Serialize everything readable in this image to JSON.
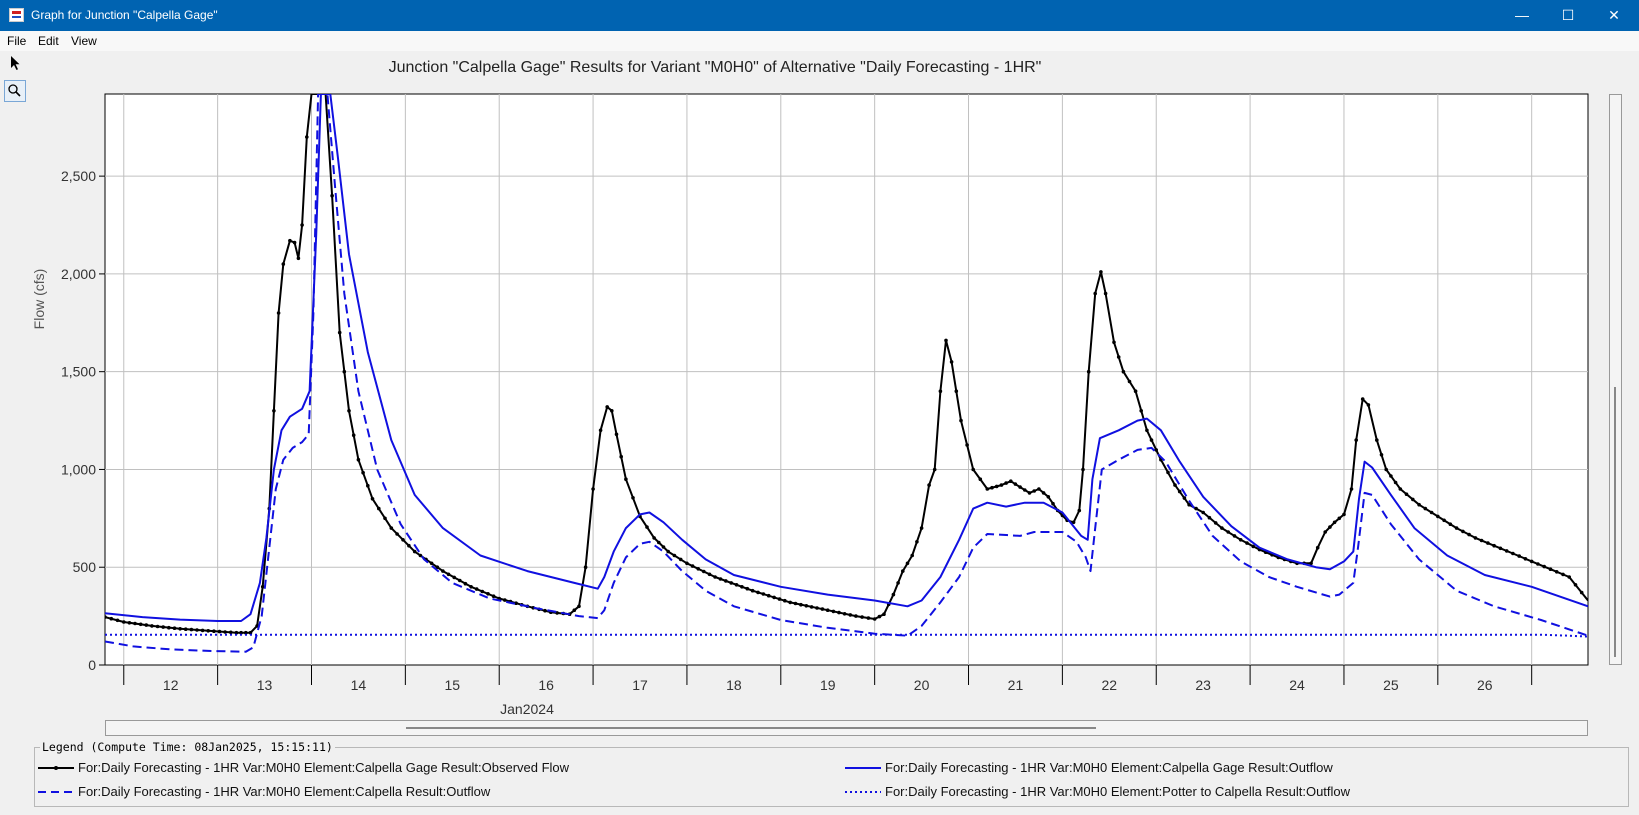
{
  "window": {
    "title": "Graph for Junction \"Calpella Gage\"",
    "minimize": "—",
    "maximize": "☐",
    "close": "✕"
  },
  "menu": {
    "file": "File",
    "edit": "Edit",
    "view": "View"
  },
  "toolbar": {
    "select_icon": "arrow-pointer-icon",
    "zoom_icon": "magnifier-icon"
  },
  "legend": {
    "title": "Legend (Compute Time: 08Jan2025, 15:15:11)",
    "entries": [
      {
        "label": "For:Daily Forecasting - 1HR Var:M0H0 Element:Calpella Gage Result:Observed Flow",
        "color": "#000000",
        "style": "solid-markers"
      },
      {
        "label": "For:Daily Forecasting - 1HR Var:M0H0 Element:Calpella Gage Result:Outflow",
        "color": "#1010e0",
        "style": "solid"
      },
      {
        "label": "For:Daily Forecasting - 1HR Var:M0H0 Element:Calpella Result:Outflow",
        "color": "#1010e0",
        "style": "dashed"
      },
      {
        "label": "For:Daily Forecasting - 1HR Var:M0H0 Element:Potter to Calpella Result:Outflow",
        "color": "#1010e0",
        "style": "dotted"
      }
    ]
  },
  "chart_data": {
    "type": "line",
    "title": "Junction \"Calpella Gage\" Results for Variant \"M0H0\" of Alternative \"Daily Forecasting - 1HR\"",
    "xlabel": "Jan2024",
    "ylabel": "Flow (cfs)",
    "x_unit": "day of Jan 2024",
    "xlim": [
      11.3,
      27.1
    ],
    "ylim": [
      0,
      2920
    ],
    "x_ticks": [
      12,
      13,
      14,
      15,
      16,
      17,
      18,
      19,
      20,
      21,
      22,
      23,
      24,
      25,
      26
    ],
    "y_ticks": [
      0,
      500,
      1000,
      1500,
      2000,
      2500
    ],
    "y_tick_labels": [
      "0",
      "500",
      "1,000",
      "1,500",
      "2,000",
      "2,500"
    ],
    "grid": true,
    "series": [
      {
        "name": "For:Daily Forecasting - 1HR Var:M0H0 Element:Calpella Gage Result:Observed Flow",
        "color": "#000000",
        "style": "solid-markers",
        "points": [
          [
            11.3,
            245
          ],
          [
            11.5,
            220
          ],
          [
            11.8,
            200
          ],
          [
            12.1,
            185
          ],
          [
            12.4,
            175
          ],
          [
            12.7,
            165
          ],
          [
            12.85,
            165
          ],
          [
            12.92,
            200
          ],
          [
            12.98,
            400
          ],
          [
            13.05,
            800
          ],
          [
            13.1,
            1300
          ],
          [
            13.15,
            1800
          ],
          [
            13.2,
            2050
          ],
          [
            13.27,
            2170
          ],
          [
            13.32,
            2160
          ],
          [
            13.36,
            2080
          ],
          [
            13.4,
            2250
          ],
          [
            13.45,
            2700
          ],
          [
            13.5,
            2920
          ],
          [
            13.55,
            2920
          ],
          [
            13.6,
            2920
          ],
          [
            13.65,
            2920
          ],
          [
            13.72,
            2400
          ],
          [
            13.8,
            1700
          ],
          [
            13.9,
            1300
          ],
          [
            14.0,
            1050
          ],
          [
            14.15,
            850
          ],
          [
            14.35,
            700
          ],
          [
            14.6,
            580
          ],
          [
            14.9,
            480
          ],
          [
            15.2,
            400
          ],
          [
            15.5,
            340
          ],
          [
            15.8,
            300
          ],
          [
            16.05,
            270
          ],
          [
            16.25,
            260
          ],
          [
            16.35,
            300
          ],
          [
            16.42,
            500
          ],
          [
            16.5,
            900
          ],
          [
            16.58,
            1200
          ],
          [
            16.65,
            1320
          ],
          [
            16.7,
            1300
          ],
          [
            16.75,
            1180
          ],
          [
            16.85,
            950
          ],
          [
            17.0,
            760
          ],
          [
            17.15,
            650
          ],
          [
            17.3,
            580
          ],
          [
            17.5,
            520
          ],
          [
            17.8,
            450
          ],
          [
            18.2,
            380
          ],
          [
            18.6,
            320
          ],
          [
            19.0,
            280
          ],
          [
            19.3,
            250
          ],
          [
            19.5,
            235
          ],
          [
            19.6,
            260
          ],
          [
            19.7,
            360
          ],
          [
            19.8,
            480
          ],
          [
            19.9,
            560
          ],
          [
            20.0,
            700
          ],
          [
            20.08,
            920
          ],
          [
            20.14,
            1000
          ],
          [
            20.2,
            1400
          ],
          [
            20.26,
            1660
          ],
          [
            20.32,
            1550
          ],
          [
            20.42,
            1250
          ],
          [
            20.55,
            1000
          ],
          [
            20.7,
            900
          ],
          [
            20.85,
            920
          ],
          [
            20.95,
            940
          ],
          [
            21.05,
            910
          ],
          [
            21.15,
            880
          ],
          [
            21.25,
            900
          ],
          [
            21.35,
            860
          ],
          [
            21.45,
            790
          ],
          [
            21.55,
            740
          ],
          [
            21.62,
            730
          ],
          [
            21.68,
            790
          ],
          [
            21.72,
            1000
          ],
          [
            21.78,
            1500
          ],
          [
            21.85,
            1900
          ],
          [
            21.91,
            2010
          ],
          [
            21.96,
            1900
          ],
          [
            22.05,
            1650
          ],
          [
            22.15,
            1500
          ],
          [
            22.28,
            1400
          ],
          [
            22.4,
            1200
          ],
          [
            22.55,
            1050
          ],
          [
            22.7,
            920
          ],
          [
            22.85,
            820
          ],
          [
            23.0,
            780
          ],
          [
            23.2,
            700
          ],
          [
            23.4,
            640
          ],
          [
            23.6,
            590
          ],
          [
            23.8,
            550
          ],
          [
            24.0,
            520
          ],
          [
            24.15,
            520
          ],
          [
            24.22,
            600
          ],
          [
            24.3,
            680
          ],
          [
            24.4,
            730
          ],
          [
            24.5,
            770
          ],
          [
            24.58,
            900
          ],
          [
            24.63,
            1150
          ],
          [
            24.7,
            1360
          ],
          [
            24.76,
            1330
          ],
          [
            24.85,
            1150
          ],
          [
            24.95,
            1000
          ],
          [
            25.1,
            900
          ],
          [
            25.3,
            820
          ],
          [
            25.5,
            760
          ],
          [
            25.7,
            700
          ],
          [
            25.9,
            650
          ],
          [
            26.1,
            610
          ],
          [
            26.3,
            570
          ],
          [
            26.5,
            530
          ],
          [
            26.7,
            490
          ],
          [
            26.9,
            450
          ],
          [
            27.1,
            330
          ]
        ]
      },
      {
        "name": "For:Daily Forecasting - 1HR Var:M0H0 Element:Calpella Gage Result:Outflow",
        "color": "#1010e0",
        "style": "solid",
        "points": [
          [
            11.3,
            265
          ],
          [
            11.7,
            245
          ],
          [
            12.1,
            232
          ],
          [
            12.5,
            225
          ],
          [
            12.75,
            225
          ],
          [
            12.85,
            260
          ],
          [
            12.95,
            420
          ],
          [
            13.02,
            650
          ],
          [
            13.1,
            1000
          ],
          [
            13.18,
            1200
          ],
          [
            13.27,
            1270
          ],
          [
            13.4,
            1310
          ],
          [
            13.48,
            1400
          ],
          [
            13.55,
            2200
          ],
          [
            13.6,
            2920
          ],
          [
            13.7,
            2920
          ],
          [
            13.78,
            2600
          ],
          [
            13.9,
            2100
          ],
          [
            14.1,
            1600
          ],
          [
            14.35,
            1150
          ],
          [
            14.6,
            870
          ],
          [
            14.9,
            700
          ],
          [
            15.3,
            560
          ],
          [
            15.8,
            480
          ],
          [
            16.3,
            420
          ],
          [
            16.55,
            390
          ],
          [
            16.62,
            450
          ],
          [
            16.72,
            580
          ],
          [
            16.85,
            700
          ],
          [
            17.0,
            770
          ],
          [
            17.1,
            780
          ],
          [
            17.25,
            730
          ],
          [
            17.45,
            640
          ],
          [
            17.7,
            540
          ],
          [
            18.0,
            460
          ],
          [
            18.5,
            400
          ],
          [
            19.0,
            360
          ],
          [
            19.5,
            330
          ],
          [
            19.85,
            300
          ],
          [
            20.0,
            330
          ],
          [
            20.2,
            450
          ],
          [
            20.4,
            640
          ],
          [
            20.55,
            800
          ],
          [
            20.7,
            830
          ],
          [
            20.9,
            810
          ],
          [
            21.1,
            830
          ],
          [
            21.3,
            830
          ],
          [
            21.5,
            780
          ],
          [
            21.7,
            660
          ],
          [
            21.77,
            640
          ],
          [
            21.82,
            950
          ],
          [
            21.9,
            1160
          ],
          [
            22.1,
            1200
          ],
          [
            22.3,
            1250
          ],
          [
            22.4,
            1260
          ],
          [
            22.55,
            1200
          ],
          [
            22.75,
            1040
          ],
          [
            23.0,
            860
          ],
          [
            23.3,
            710
          ],
          [
            23.6,
            600
          ],
          [
            23.9,
            540
          ],
          [
            24.2,
            500
          ],
          [
            24.35,
            490
          ],
          [
            24.5,
            530
          ],
          [
            24.6,
            580
          ],
          [
            24.66,
            850
          ],
          [
            24.72,
            1040
          ],
          [
            24.8,
            1010
          ],
          [
            25.0,
            870
          ],
          [
            25.25,
            700
          ],
          [
            25.6,
            560
          ],
          [
            26.0,
            460
          ],
          [
            26.5,
            400
          ],
          [
            27.1,
            300
          ]
        ]
      },
      {
        "name": "For:Daily Forecasting - 1HR Var:M0H0 Element:Calpella Result:Outflow",
        "color": "#1010e0",
        "style": "dashed",
        "points": [
          [
            11.3,
            120
          ],
          [
            11.6,
            95
          ],
          [
            12.0,
            80
          ],
          [
            12.4,
            72
          ],
          [
            12.8,
            68
          ],
          [
            12.88,
            90
          ],
          [
            12.97,
            250
          ],
          [
            13.05,
            600
          ],
          [
            13.12,
            900
          ],
          [
            13.2,
            1050
          ],
          [
            13.3,
            1110
          ],
          [
            13.4,
            1140
          ],
          [
            13.47,
            1180
          ],
          [
            13.52,
            1800
          ],
          [
            13.57,
            2920
          ],
          [
            13.67,
            2920
          ],
          [
            13.75,
            2450
          ],
          [
            13.85,
            1900
          ],
          [
            14.0,
            1400
          ],
          [
            14.2,
            1000
          ],
          [
            14.45,
            720
          ],
          [
            14.7,
            540
          ],
          [
            15.0,
            420
          ],
          [
            15.4,
            340
          ],
          [
            15.9,
            290
          ],
          [
            16.35,
            250
          ],
          [
            16.55,
            240
          ],
          [
            16.62,
            280
          ],
          [
            16.72,
            420
          ],
          [
            16.85,
            550
          ],
          [
            17.0,
            620
          ],
          [
            17.1,
            630
          ],
          [
            17.25,
            580
          ],
          [
            17.45,
            480
          ],
          [
            17.7,
            380
          ],
          [
            18.0,
            300
          ],
          [
            18.5,
            230
          ],
          [
            19.0,
            190
          ],
          [
            19.5,
            160
          ],
          [
            19.85,
            150
          ],
          [
            20.0,
            200
          ],
          [
            20.2,
            320
          ],
          [
            20.4,
            450
          ],
          [
            20.55,
            600
          ],
          [
            20.7,
            670
          ],
          [
            20.9,
            665
          ],
          [
            21.05,
            660
          ],
          [
            21.2,
            680
          ],
          [
            21.5,
            680
          ],
          [
            21.65,
            630
          ],
          [
            21.75,
            550
          ],
          [
            21.8,
            480
          ],
          [
            21.85,
            700
          ],
          [
            21.92,
            1000
          ],
          [
            22.1,
            1050
          ],
          [
            22.3,
            1100
          ],
          [
            22.45,
            1110
          ],
          [
            22.6,
            1040
          ],
          [
            22.85,
            840
          ],
          [
            23.1,
            660
          ],
          [
            23.4,
            530
          ],
          [
            23.7,
            450
          ],
          [
            24.0,
            400
          ],
          [
            24.35,
            350
          ],
          [
            24.45,
            360
          ],
          [
            24.6,
            420
          ],
          [
            24.65,
            600
          ],
          [
            24.72,
            880
          ],
          [
            24.8,
            870
          ],
          [
            25.0,
            720
          ],
          [
            25.3,
            540
          ],
          [
            25.7,
            380
          ],
          [
            26.1,
            300
          ],
          [
            26.6,
            230
          ],
          [
            27.1,
            150
          ]
        ]
      },
      {
        "name": "For:Daily Forecasting - 1HR Var:M0H0 Element:Potter to Calpella Result:Outflow",
        "color": "#1010e0",
        "style": "dotted",
        "points": [
          [
            11.3,
            155
          ],
          [
            26.6,
            155
          ],
          [
            26.9,
            150
          ],
          [
            27.1,
            145
          ]
        ]
      }
    ]
  }
}
